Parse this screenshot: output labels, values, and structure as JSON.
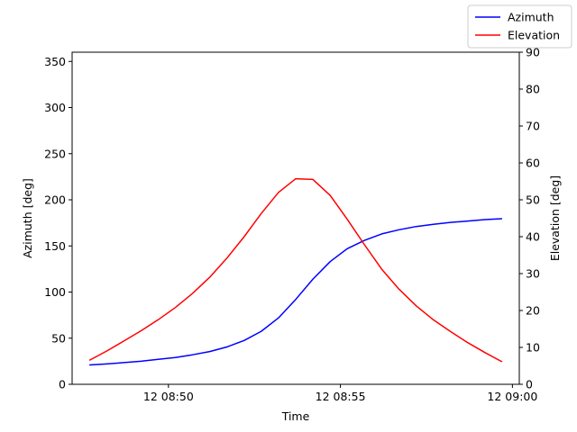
{
  "chart_data": {
    "type": "line",
    "title": "",
    "xlabel": "Time",
    "ylabel_left": "Azimuth [deg]",
    "ylabel_right": "Elevation [deg]",
    "x_ticks": [
      "12 08:50",
      "12 08:55",
      "12 09:00"
    ],
    "x_tick_minutes": [
      50,
      55,
      60
    ],
    "xlim_minutes": [
      47.2,
      60.2
    ],
    "y_left_ticks": [
      "0",
      "50",
      "100",
      "150",
      "200",
      "250",
      "300",
      "350"
    ],
    "y_left_lim": [
      0,
      360
    ],
    "y_right_ticks": [
      "0",
      "10",
      "20",
      "30",
      "40",
      "50",
      "60",
      "70",
      "80",
      "90"
    ],
    "y_right_lim": [
      0,
      90
    ],
    "legend_position": "top-right",
    "grid": false,
    "x_minutes": [
      47.7,
      48.2,
      48.7,
      49.2,
      49.7,
      50.2,
      50.7,
      51.2,
      51.7,
      52.2,
      52.7,
      53.2,
      53.7,
      54.2,
      54.7,
      55.2,
      55.7,
      56.2,
      56.7,
      57.2,
      57.7,
      58.2,
      58.7,
      59.2,
      59.7
    ],
    "series": [
      {
        "name": "Azimuth",
        "axis": "left",
        "color": "#0000ff",
        "values": [
          21,
          22,
          23.5,
          25,
          27,
          29,
          32,
          35.5,
          40.5,
          47.5,
          57.5,
          72,
          92,
          114,
          133,
          147,
          156,
          163,
          167.5,
          171,
          173.5,
          175.5,
          177,
          178.5,
          179.5
        ]
      },
      {
        "name": "Elevation",
        "axis": "right",
        "color": "#ff0000",
        "values": [
          6.5,
          9,
          11.7,
          14.5,
          17.5,
          20.8,
          24.6,
          29,
          34.2,
          40,
          46.3,
          52,
          55.7,
          55.5,
          51.2,
          44.7,
          37.8,
          31.2,
          25.8,
          21.3,
          17.5,
          14.3,
          11.3,
          8.6,
          6.1
        ]
      }
    ]
  }
}
